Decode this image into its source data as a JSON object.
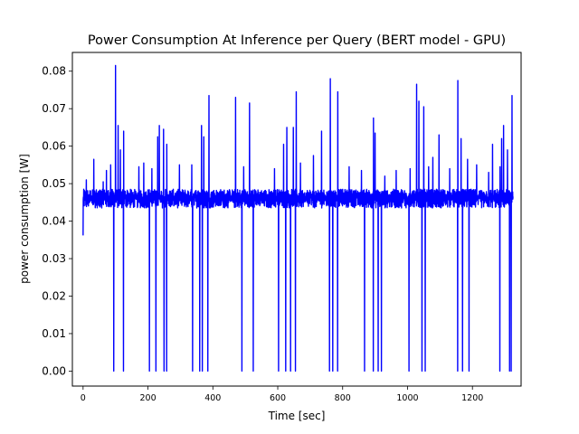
{
  "chart_data": {
    "type": "line",
    "title": "Power Consumption At Inference per Query (BERT model - GPU)",
    "xlabel": "Time [sec]",
    "ylabel": "power consumption [W]",
    "xlim": [
      -33,
      1350
    ],
    "ylim": [
      -0.004,
      0.085
    ],
    "x_ticks": [
      0,
      200,
      400,
      600,
      800,
      1000,
      1200
    ],
    "y_ticks": [
      0.0,
      0.01,
      0.02,
      0.03,
      0.04,
      0.05,
      0.06,
      0.07,
      0.08
    ],
    "x_tick_labels": [
      "0",
      "200",
      "400",
      "600",
      "800",
      "1000",
      "1200"
    ],
    "y_tick_labels": [
      "0.00",
      "0.01",
      "0.02",
      "0.03",
      "0.04",
      "0.05",
      "0.06",
      "0.07",
      "0.08"
    ],
    "grid": false,
    "line_color": "#0000ff",
    "series": [
      {
        "baseline": 0.0455,
        "noise_band": [
          0.0435,
          0.0485
        ],
        "start_value": 0.0362,
        "x_end": 1325,
        "spikes_up": [
          [
            10,
            0.051
          ],
          [
            33,
            0.0565
          ],
          [
            62,
            0.0505
          ],
          [
            72,
            0.0535
          ],
          [
            85,
            0.055
          ],
          [
            100,
            0.0815
          ],
          [
            108,
            0.0655
          ],
          [
            115,
            0.059
          ],
          [
            125,
            0.064
          ],
          [
            172,
            0.0545
          ],
          [
            187,
            0.0555
          ],
          [
            212,
            0.054
          ],
          [
            230,
            0.0625
          ],
          [
            235,
            0.0655
          ],
          [
            248,
            0.0645
          ],
          [
            258,
            0.0605
          ],
          [
            297,
            0.055
          ],
          [
            335,
            0.055
          ],
          [
            365,
            0.0655
          ],
          [
            372,
            0.0625
          ],
          [
            388,
            0.0735
          ],
          [
            470,
            0.073
          ],
          [
            495,
            0.0545
          ],
          [
            513,
            0.0715
          ],
          [
            590,
            0.054
          ],
          [
            618,
            0.0605
          ],
          [
            628,
            0.065
          ],
          [
            648,
            0.065
          ],
          [
            657,
            0.0745
          ],
          [
            670,
            0.0555
          ],
          [
            710,
            0.0575
          ],
          [
            735,
            0.064
          ],
          [
            762,
            0.078
          ],
          [
            785,
            0.0745
          ],
          [
            820,
            0.0545
          ],
          [
            858,
            0.0535
          ],
          [
            895,
            0.0675
          ],
          [
            900,
            0.0635
          ],
          [
            930,
            0.052
          ],
          [
            965,
            0.0535
          ],
          [
            1008,
            0.054
          ],
          [
            1028,
            0.0765
          ],
          [
            1035,
            0.072
          ],
          [
            1050,
            0.0705
          ],
          [
            1065,
            0.0545
          ],
          [
            1078,
            0.057
          ],
          [
            1097,
            0.063
          ],
          [
            1130,
            0.054
          ],
          [
            1155,
            0.0775
          ],
          [
            1165,
            0.062
          ],
          [
            1185,
            0.0565
          ],
          [
            1213,
            0.055
          ],
          [
            1250,
            0.053
          ],
          [
            1262,
            0.0605
          ],
          [
            1285,
            0.0545
          ],
          [
            1290,
            0.062
          ],
          [
            1296,
            0.0655
          ],
          [
            1308,
            0.059
          ],
          [
            1322,
            0.0735
          ]
        ],
        "drops_to_zero": [
          95,
          125,
          205,
          225,
          250,
          258,
          338,
          360,
          368,
          385,
          490,
          525,
          603,
          625,
          640,
          655,
          760,
          770,
          785,
          868,
          895,
          910,
          920,
          1005,
          1045,
          1055,
          1155,
          1170,
          1190,
          1285,
          1315,
          1320
        ]
      }
    ]
  }
}
